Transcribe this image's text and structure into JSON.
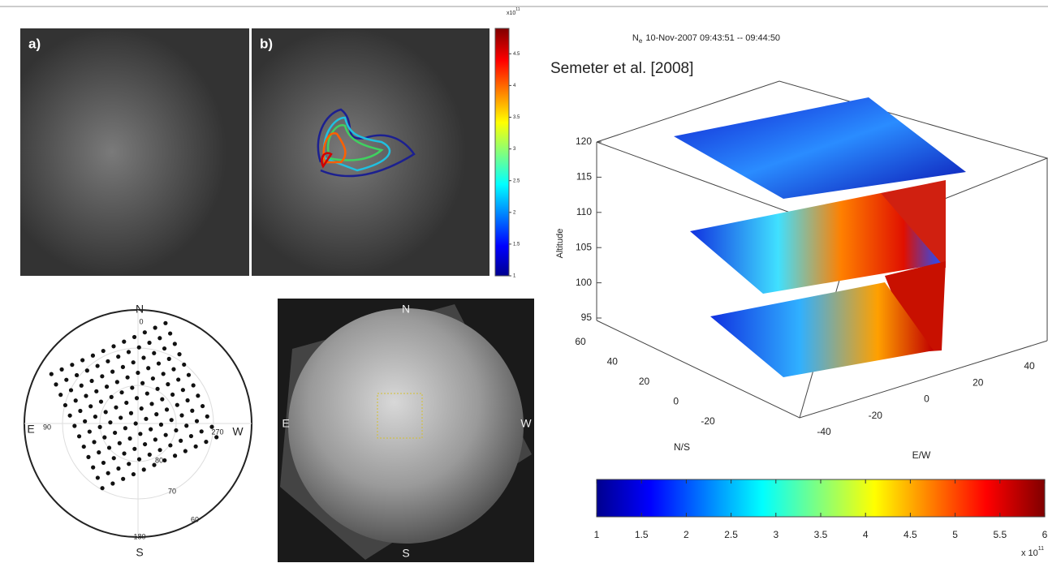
{
  "figure": {
    "panel_a": {
      "label": "a)"
    },
    "panel_b": {
      "label": "b)",
      "colorbar": {
        "multiplier": "x10",
        "exponent": "11",
        "range": [
          1,
          4.9
        ],
        "ticks": [
          1,
          1.5,
          2,
          2.5,
          3,
          3.5,
          4,
          4.5
        ]
      }
    },
    "polar_plot": {
      "north": "N",
      "east": "E",
      "west": "W",
      "south": "S",
      "azimuth_labels": [
        0,
        90,
        270,
        180
      ],
      "elevation_labels": [
        80,
        70,
        60
      ]
    },
    "all_sky_image": {
      "north": "N",
      "east": "E",
      "west": "W",
      "south": "S"
    },
    "volume_plot": {
      "title_symbol": "N",
      "title_subscript": "e",
      "title": "10-Nov-2007 09:43:51 -- 09:44:50",
      "citation": "Semeter et al. [2008]",
      "z_label": "Altitude",
      "zlim": [
        95,
        120
      ],
      "zticks": [
        95,
        100,
        105,
        110,
        115,
        120
      ],
      "x_label": "N/S",
      "xlim": [
        60,
        -20
      ],
      "xticks": [
        60,
        40,
        20,
        0,
        -20
      ],
      "y_label": "E/W",
      "ylim": [
        -40,
        40
      ],
      "yticks": [
        -40,
        -20,
        0,
        20,
        40
      ],
      "colorbar": {
        "range": [
          1,
          6
        ],
        "ticks": [
          1,
          1.5,
          2,
          2.5,
          3,
          3.5,
          4,
          4.5,
          5,
          5.5,
          6
        ],
        "multiplier": "x 10",
        "exponent": "11"
      }
    }
  }
}
